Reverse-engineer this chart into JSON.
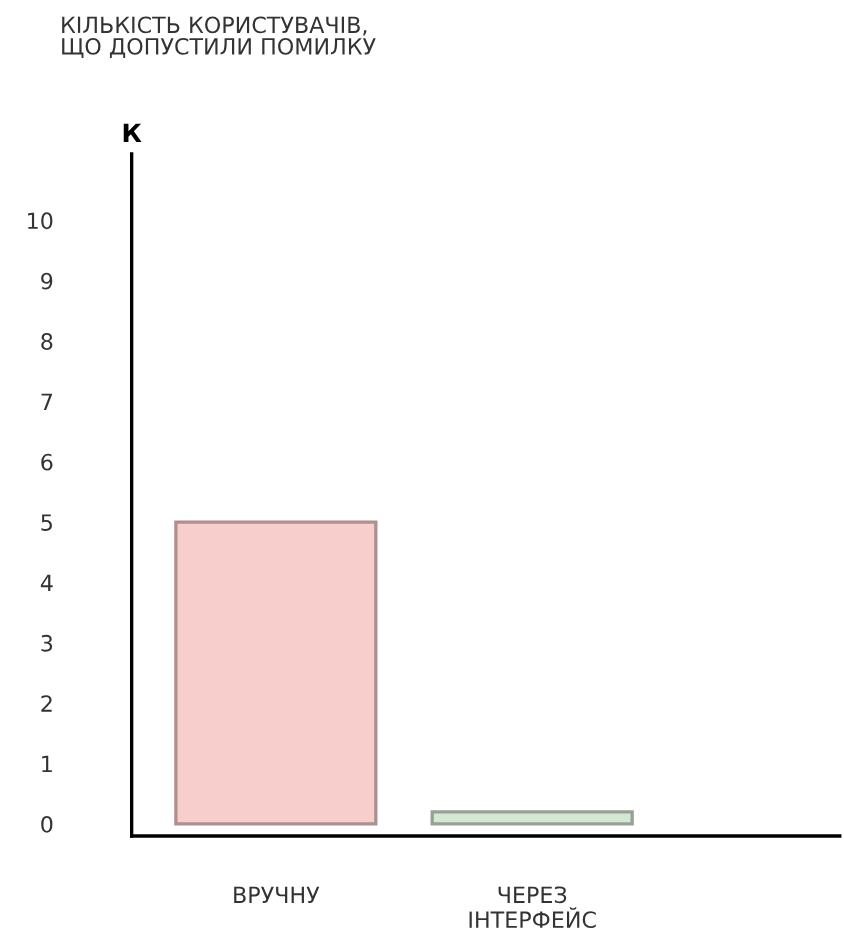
{
  "chart_data": {
    "type": "bar",
    "title": "КІЛЬКІСТЬ КОРИСТУВАЧІВ,\nЩО ДОПУСТИЛИ ПОМИЛКУ",
    "ylabel": "К",
    "categories": [
      "ВРУЧНУ",
      "ЧЕРЕЗ\nІНТЕРФЕЙС"
    ],
    "values": [
      5,
      0.2
    ],
    "colors": [
      "#f8cecc",
      "#d5e8d4"
    ],
    "ylim": [
      -0.2,
      11.1
    ],
    "yticks": [
      0,
      1,
      2,
      3,
      4,
      5,
      6,
      7,
      8,
      9,
      10
    ],
    "grid": false,
    "legend": false
  }
}
